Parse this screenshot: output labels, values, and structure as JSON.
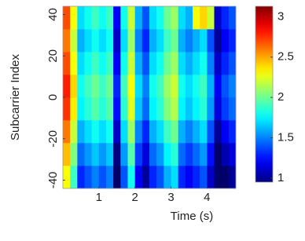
{
  "chart_data": {
    "type": "heatmap",
    "x_label": "Time (s)",
    "y_label": "Subcarrier Index",
    "x_bins": [
      0,
      0.2,
      0.4,
      0.6,
      0.8,
      1.0,
      1.2,
      1.4,
      1.6,
      1.8,
      2.0,
      2.2,
      2.4,
      2.6,
      2.8,
      3.0,
      3.2,
      3.4,
      3.6,
      3.8,
      4.0,
      4.2,
      4.4,
      4.6,
      4.8
    ],
    "y_bins": [
      -44,
      -33,
      -22,
      -11,
      0,
      11,
      22,
      33,
      44
    ],
    "values": [
      [
        2.3,
        1.9,
        1.3,
        1.4,
        1.5,
        1.4,
        1.5,
        0.9,
        1.4,
        1.8,
        1.2,
        1.0,
        1.3,
        1.4,
        1.6,
        1.7,
        1.3,
        1.2,
        1.3,
        1.4,
        1.1,
        0.9,
        0.9,
        1.0
      ],
      [
        2.45,
        2.05,
        1.45,
        1.55,
        1.65,
        1.55,
        1.65,
        0.95,
        1.55,
        1.95,
        1.35,
        1.15,
        1.45,
        1.55,
        1.75,
        1.85,
        1.45,
        1.35,
        1.45,
        1.55,
        1.25,
        0.9,
        1.05,
        1.15
      ],
      [
        2.6,
        2.2,
        1.6,
        1.7,
        1.8,
        1.7,
        1.8,
        1.1,
        1.7,
        2.1,
        1.5,
        1.3,
        1.6,
        1.7,
        1.9,
        2.0,
        1.6,
        1.5,
        1.6,
        1.7,
        1.4,
        1.0,
        1.2,
        1.3
      ],
      [
        2.75,
        2.35,
        1.75,
        1.85,
        1.95,
        1.85,
        1.95,
        1.25,
        1.85,
        2.25,
        1.65,
        1.45,
        1.75,
        1.85,
        2.05,
        2.15,
        1.75,
        1.65,
        1.75,
        1.85,
        1.55,
        1.15,
        1.35,
        1.45
      ],
      [
        2.8,
        2.4,
        1.8,
        1.9,
        2.0,
        1.9,
        2.0,
        1.3,
        1.9,
        2.3,
        1.7,
        1.5,
        1.8,
        1.9,
        2.1,
        2.2,
        1.8,
        1.7,
        1.8,
        1.9,
        1.6,
        1.2,
        1.4,
        1.5
      ],
      [
        2.7,
        2.3,
        1.7,
        1.8,
        1.9,
        1.8,
        1.9,
        1.2,
        1.8,
        2.2,
        1.6,
        1.4,
        1.7,
        1.8,
        2.0,
        2.1,
        1.7,
        1.6,
        1.7,
        1.8,
        1.5,
        1.1,
        1.3,
        1.4
      ],
      [
        2.6,
        2.2,
        1.6,
        1.7,
        1.8,
        1.7,
        1.8,
        1.1,
        1.7,
        2.1,
        1.5,
        1.3,
        1.6,
        1.7,
        1.9,
        2.0,
        1.6,
        1.5,
        1.6,
        1.7,
        1.4,
        1.0,
        1.2,
        1.3
      ],
      [
        2.7,
        2.3,
        1.7,
        1.8,
        1.9,
        1.8,
        1.9,
        1.2,
        1.8,
        2.2,
        1.6,
        1.4,
        1.7,
        1.8,
        2.0,
        2.1,
        1.7,
        1.6,
        2.3,
        2.4,
        2.2,
        1.1,
        1.3,
        1.4
      ]
    ],
    "xlim": [
      0,
      4.8
    ],
    "ylim": [
      -44,
      44
    ],
    "xticks": [
      1,
      2,
      3,
      4
    ],
    "yticks": [
      -40,
      -20,
      0,
      20,
      40
    ],
    "colormap": "jet",
    "clim": [
      0.95,
      3.13
    ],
    "cticks": [
      1,
      1.5,
      2,
      2.5,
      3
    ]
  }
}
